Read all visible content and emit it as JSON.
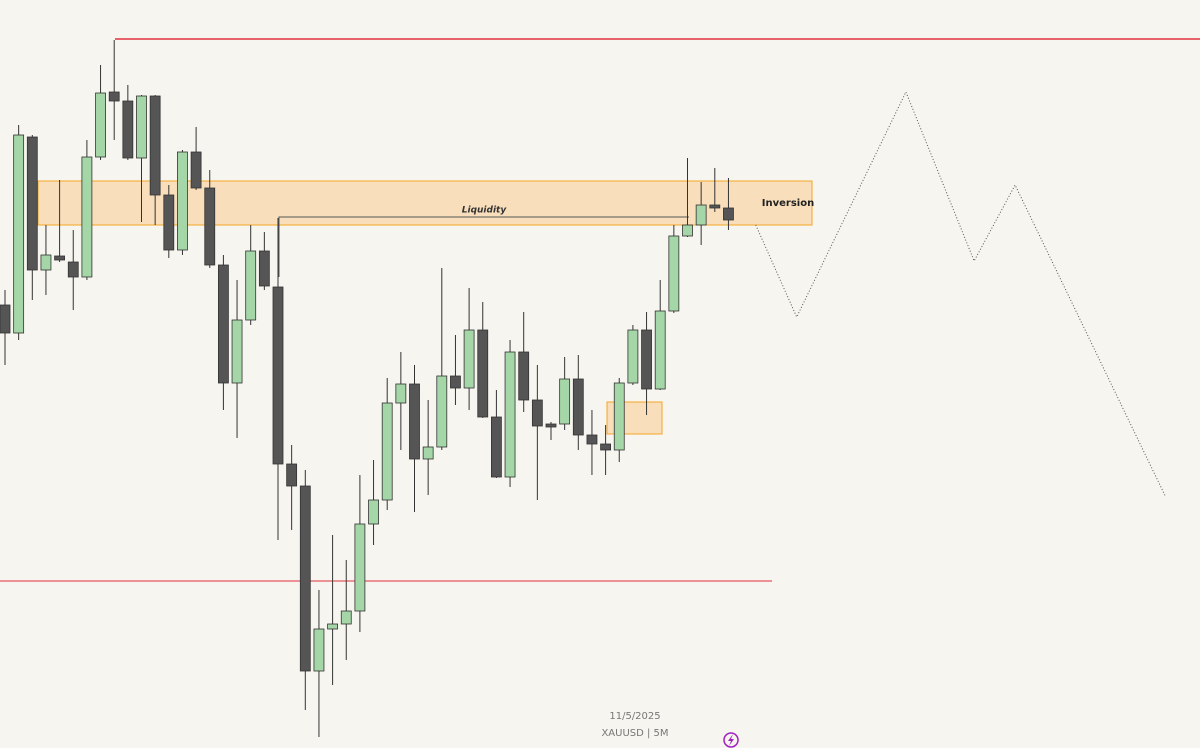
{
  "chart_data": {
    "type": "candlestick",
    "date": "11/5/2025",
    "symbol_label": "XAUUSD | 5M",
    "ylim": [
      0,
      748
    ],
    "up_color": "#a5d6a7",
    "down_color": "#555555",
    "open": [
      443,
      415,
      611,
      478,
      492,
      486,
      471,
      591,
      656,
      647,
      590,
      652,
      553,
      498,
      596,
      560,
      483,
      365,
      428,
      497,
      461,
      284,
      262,
      77,
      119,
      124,
      137,
      224,
      248,
      345,
      364,
      289,
      301,
      372,
      360,
      418,
      331,
      271,
      396,
      348,
      324,
      324,
      369,
      313,
      304,
      298,
      365,
      418,
      359,
      437,
      512,
      523,
      543,
      540
    ],
    "high": [
      458,
      623,
      613,
      523,
      568,
      518,
      608,
      683,
      708,
      663,
      653,
      653,
      563,
      598,
      621,
      578,
      493,
      468,
      523,
      516,
      530,
      303,
      278,
      158,
      213,
      188,
      273,
      288,
      370,
      396,
      383,
      348,
      480,
      413,
      460,
      446,
      358,
      408,
      436,
      383,
      326,
      391,
      393,
      338,
      323,
      370,
      423,
      436,
      468,
      523,
      590,
      566,
      580,
      570
    ],
    "low": [
      383,
      408,
      448,
      453,
      486,
      438,
      468,
      588,
      608,
      588,
      526,
      523,
      490,
      493,
      558,
      480,
      338,
      310,
      423,
      458,
      208,
      218,
      38,
      11,
      63,
      88,
      116,
      203,
      238,
      298,
      236,
      253,
      298,
      343,
      338,
      330,
      270,
      261,
      336,
      248,
      308,
      318,
      298,
      273,
      273,
      286,
      363,
      333,
      358,
      435,
      511,
      503,
      536,
      518
    ],
    "close": [
      415,
      613,
      478,
      493,
      488,
      471,
      591,
      655,
      647,
      590,
      652,
      553,
      498,
      596,
      560,
      483,
      365,
      428,
      497,
      462,
      284,
      262,
      77,
      119,
      124,
      137,
      224,
      248,
      345,
      364,
      289,
      301,
      372,
      360,
      418,
      331,
      271,
      396,
      348,
      322,
      321,
      369,
      313,
      304,
      298,
      365,
      418,
      359,
      437,
      512,
      523,
      543,
      540,
      528
    ],
    "levels": [
      {
        "value": 709,
        "color": "#e0303c"
      },
      {
        "value": 167,
        "color": "#e0303c"
      }
    ],
    "zones": [
      {
        "top": 567,
        "bottom": 523,
        "label": "Inversion"
      },
      {
        "top": 346,
        "bottom": 314
      }
    ],
    "liquidity": {
      "value": 531,
      "label": "Liquidity"
    },
    "projection": {
      "x": [
        55,
        58,
        66,
        71,
        74,
        85
      ],
      "values": [
        523,
        431,
        656,
        487,
        563,
        252
      ]
    }
  }
}
